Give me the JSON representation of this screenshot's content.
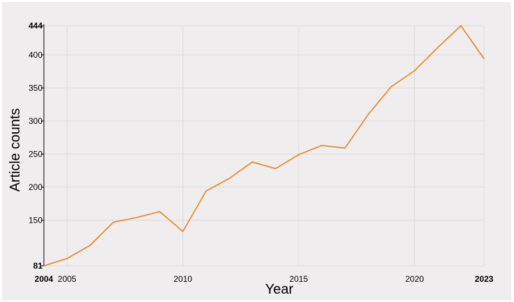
{
  "chart_data": {
    "type": "line",
    "xlabel": "Year",
    "ylabel": "Article counts",
    "xlim": [
      2004,
      2023
    ],
    "ylim": [
      81,
      444
    ],
    "grid": true,
    "x_ticks": [
      {
        "value": 2004,
        "label": "2004",
        "bold": true
      },
      {
        "value": 2005,
        "label": "2005",
        "bold": false
      },
      {
        "value": 2010,
        "label": "2010",
        "bold": false
      },
      {
        "value": 2015,
        "label": "2015",
        "bold": false
      },
      {
        "value": 2020,
        "label": "2020",
        "bold": false
      },
      {
        "value": 2023,
        "label": "2023",
        "bold": true
      }
    ],
    "y_ticks": [
      {
        "value": 81,
        "label": "81",
        "bold": true
      },
      {
        "value": 150,
        "label": "150",
        "bold": false
      },
      {
        "value": 200,
        "label": "200",
        "bold": false
      },
      {
        "value": 250,
        "label": "250",
        "bold": false
      },
      {
        "value": 300,
        "label": "300",
        "bold": false
      },
      {
        "value": 350,
        "label": "350",
        "bold": false
      },
      {
        "value": 400,
        "label": "400",
        "bold": false
      },
      {
        "value": 444,
        "label": "444",
        "bold": true
      }
    ],
    "series": [
      {
        "color": "#f07f1b",
        "x": [
          2004,
          2005,
          2006,
          2007,
          2008,
          2009,
          2010,
          2011,
          2012,
          2013,
          2014,
          2015,
          2016,
          2017,
          2018,
          2019,
          2020,
          2021,
          2022,
          2023
        ],
        "y": [
          81,
          92,
          112,
          147,
          154,
          163,
          133,
          194,
          213,
          238,
          228,
          249,
          263,
          259,
          310,
          352,
          376,
          411,
          444,
          394
        ]
      }
    ]
  }
}
